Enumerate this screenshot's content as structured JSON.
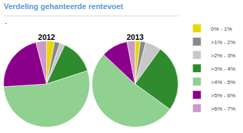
{
  "chart_data": {
    "type": "pie",
    "title": "Verdeling gehanteerde rentevoet",
    "categories": [
      "0% - 1%",
      ">1% - 2%",
      ">2% - 3%",
      ">3% - 4%",
      ">4% - 5%",
      ">5% - 6%",
      ">6% - 7%"
    ],
    "colors": [
      "#e8d800",
      "#888888",
      "#c8c8c8",
      "#2e8b2e",
      "#90d090",
      "#8b008b",
      "#cc99cc"
    ],
    "series": [
      {
        "name": "2012",
        "values": [
          3,
          2,
          2,
          13,
          54,
          22,
          4
        ]
      },
      {
        "name": "2013",
        "values": [
          2,
          2,
          6,
          25,
          52,
          10,
          3
        ]
      }
    ],
    "annotations": [
      "-"
    ],
    "legend": "right"
  }
}
